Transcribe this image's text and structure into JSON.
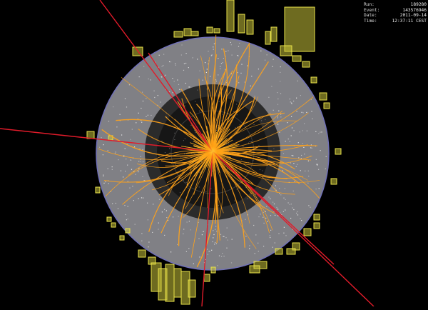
{
  "event_info": {
    "rows": [
      {
        "label": "Run:",
        "value": "189280"
      },
      {
        "label": "Event:",
        "value": "143576946"
      },
      {
        "label": "Date:",
        "value": "2011-09-14"
      },
      {
        "label": "Time:",
        "value": "12:37:11 CEST"
      }
    ]
  },
  "colors": {
    "background": "#000000",
    "outer_detector": "#7d7d82",
    "inner_detector": "#2a2a2a",
    "core": "#1a1a1a",
    "tracks": "#ffa21a",
    "muon_lines": "#e01b2a",
    "calorimeter_towers": "#c8c23a",
    "boundary_ring": "#6f6fb0"
  },
  "icons": [
    "particle-event-display"
  ]
}
